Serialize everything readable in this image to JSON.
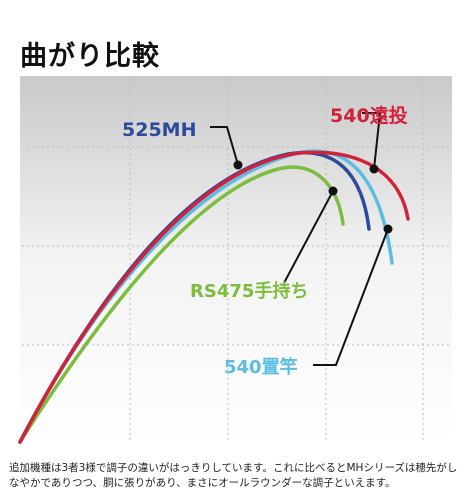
{
  "title": "曲がり比較",
  "caption": "追加機種は3者3様で調子の違いがはっきりしています。これに比べるとMHシリーズは穂先がしなやかでありつつ、胴に張りがあり、まさにオールラウンダーな調子といえます。",
  "curves": [
    {
      "label": "525MH",
      "color": "#2c4a9c"
    },
    {
      "label": "540遠投",
      "color": "#d1223a"
    },
    {
      "label": "RS475手持ち",
      "color": "#7cbd3e"
    },
    {
      "label": "540置竿",
      "color": "#5bbce4"
    }
  ]
}
